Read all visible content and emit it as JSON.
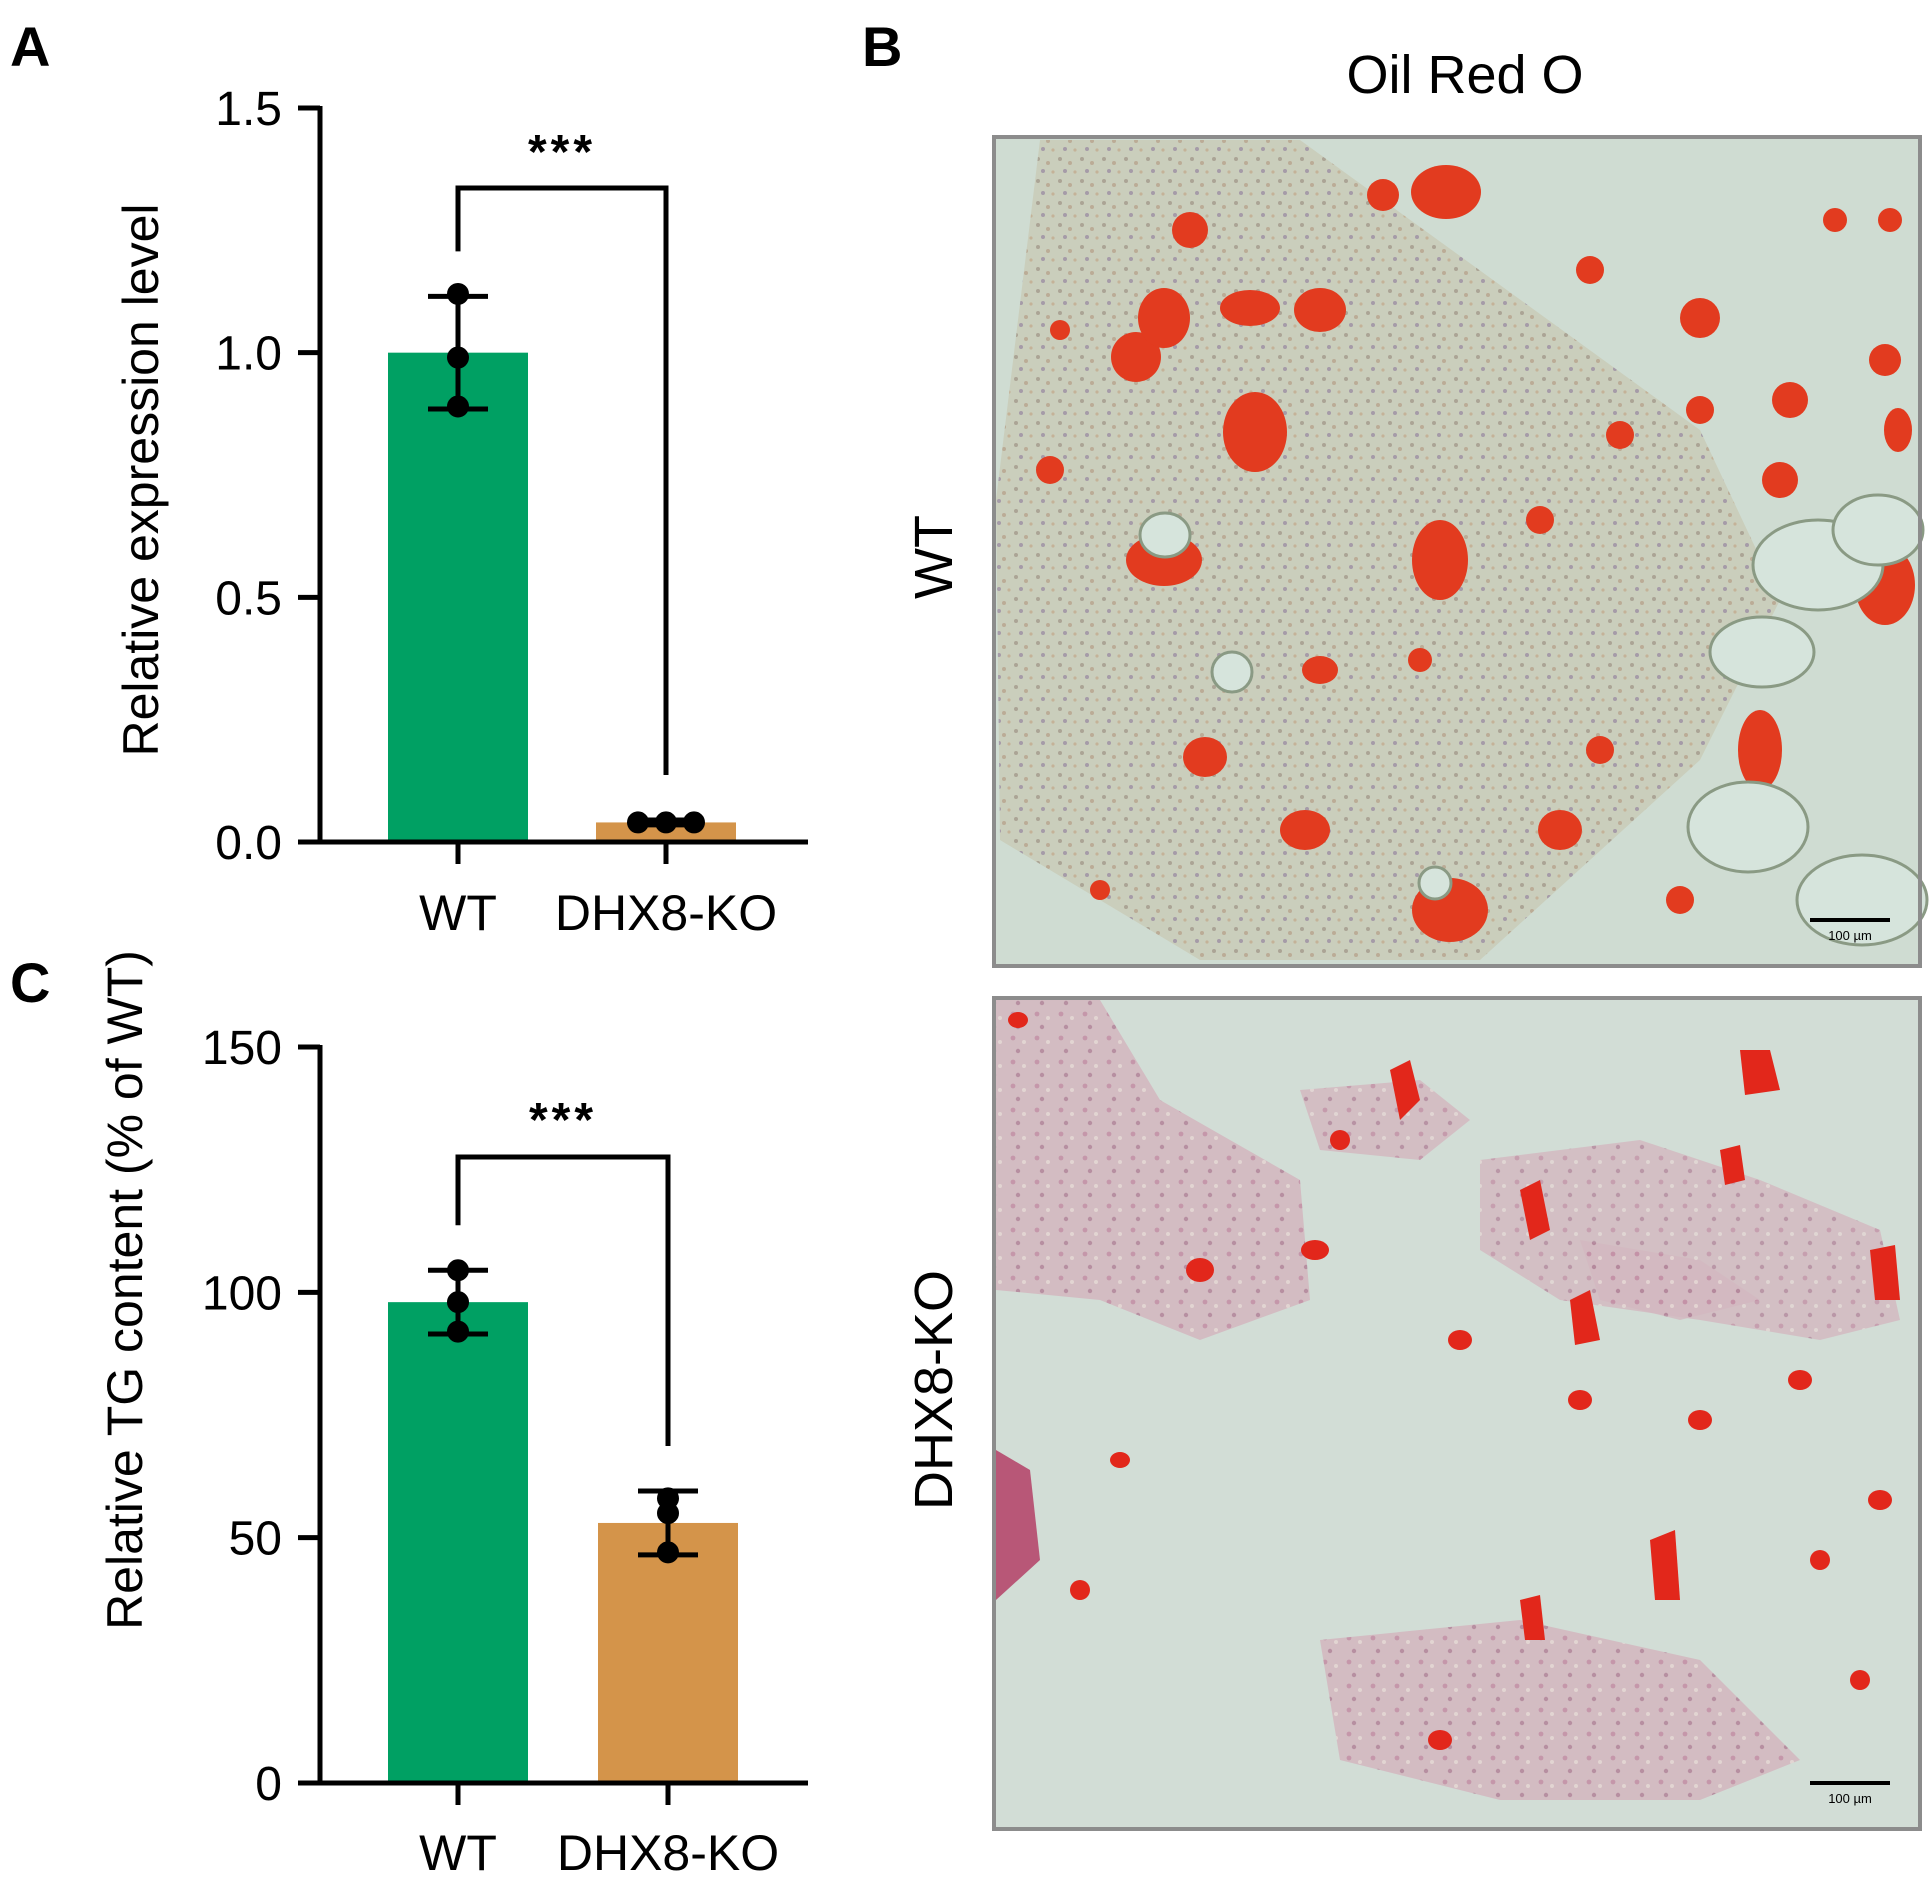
{
  "panels": {
    "A": "A",
    "B": "B",
    "C": "C"
  },
  "chart_data": [
    {
      "panel": "A",
      "type": "bar",
      "title": "",
      "xlabel": "",
      "ylabel": "Relative expression level",
      "ylim": [
        0,
        1.5
      ],
      "yticks": [
        "0.0",
        "0.5",
        "1.0",
        "1.5"
      ],
      "ytick_values": [
        0,
        0.5,
        1.0,
        1.5
      ],
      "categories": [
        "WT",
        "DHX8-KO"
      ],
      "values": [
        1.0,
        0.04
      ],
      "error": [
        0.115,
        0.005
      ],
      "points": [
        [
          1.12,
          0.99,
          0.89
        ],
        [
          0.04,
          0.04,
          0.04
        ]
      ],
      "bar_colors": [
        "#00a063",
        "#d4944a"
      ],
      "significance": "***",
      "grid": false
    },
    {
      "panel": "C",
      "type": "bar",
      "title": "",
      "xlabel": "",
      "ylabel": "Relative TG content (% of WT)",
      "ylim": [
        0,
        150
      ],
      "yticks": [
        "0",
        "50",
        "100",
        "150"
      ],
      "ytick_values": [
        0,
        50,
        100,
        150
      ],
      "categories": [
        "WT",
        "DHX8-KO"
      ],
      "values": [
        98,
        53
      ],
      "error": [
        6.5,
        6.5
      ],
      "points": [
        [
          104.5,
          98,
          92
        ],
        [
          58,
          55,
          47
        ]
      ],
      "bar_colors": [
        "#00a063",
        "#d4944a"
      ],
      "significance": "***",
      "grid": false
    }
  ],
  "images": {
    "title": "Oil Red O",
    "rows": [
      {
        "label": "WT",
        "scale_bar": "100 µm"
      },
      {
        "label": "DHX8-KO",
        "scale_bar": "100 µm"
      }
    ]
  }
}
